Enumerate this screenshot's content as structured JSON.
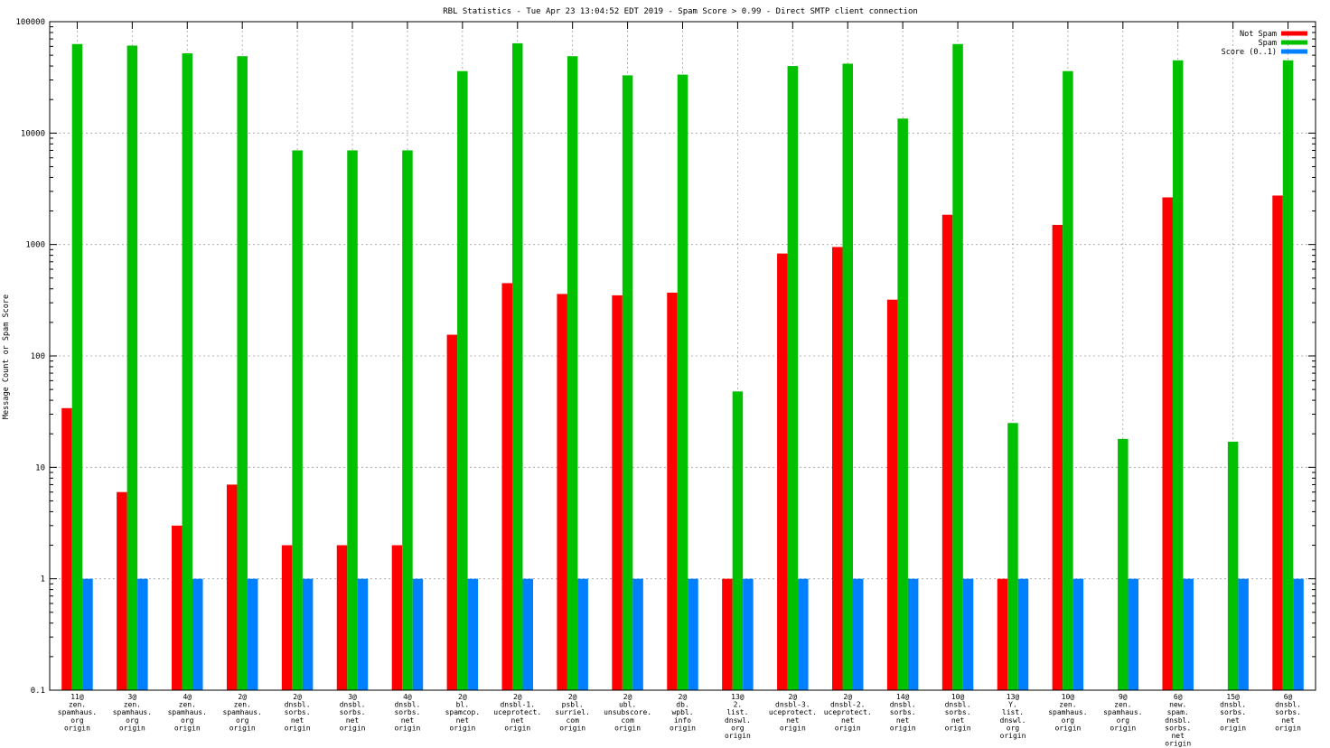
{
  "chart_data": {
    "type": "bar",
    "title": "RBL Statistics - Tue Apr 23 13:04:52 EDT 2019 - Spam Score > 0.99 - Direct SMTP client connection",
    "xlabel": "",
    "ylabel": "Message Count or Spam Score",
    "y_scale": "log",
    "ylim": [
      0.1,
      100000
    ],
    "y_ticks": [
      "0.1",
      "1",
      "10",
      "100",
      "1000",
      "10000",
      "100000"
    ],
    "grid": true,
    "legend_position": "top-right",
    "categories": [
      [
        "11@",
        "zen.",
        "spamhaus.",
        "org",
        "origin"
      ],
      [
        "3@",
        "zen.",
        "spamhaus.",
        "org",
        "origin"
      ],
      [
        "4@",
        "zen.",
        "spamhaus.",
        "org",
        "origin"
      ],
      [
        "2@",
        "zen.",
        "spamhaus.",
        "org",
        "origin"
      ],
      [
        "2@",
        "dnsbl.",
        "sorbs.",
        "net",
        "origin"
      ],
      [
        "3@",
        "dnsbl.",
        "sorbs.",
        "net",
        "origin"
      ],
      [
        "4@",
        "dnsbl.",
        "sorbs.",
        "net",
        "origin"
      ],
      [
        "2@",
        "bl.",
        "spamcop.",
        "net",
        "origin"
      ],
      [
        "2@",
        "dnsbl-1.",
        "uceprotect.",
        "net",
        "origin"
      ],
      [
        "2@",
        "psbl.",
        "surriel.",
        "com",
        "origin"
      ],
      [
        "2@",
        "ubl.",
        "unsubscore.",
        "com",
        "origin"
      ],
      [
        "2@",
        "db.",
        "wpbl.",
        "info",
        "origin"
      ],
      [
        "13@",
        "2.",
        "list.",
        "dnswl.",
        "org",
        "origin"
      ],
      [
        "2@",
        "dnsbl-3.",
        "uceprotect.",
        "net",
        "origin"
      ],
      [
        "2@",
        "dnsbl-2.",
        "uceprotect.",
        "net",
        "origin"
      ],
      [
        "14@",
        "dnsbl.",
        "sorbs.",
        "net",
        "origin"
      ],
      [
        "10@",
        "dnsbl.",
        "sorbs.",
        "net",
        "origin"
      ],
      [
        "13@",
        "Y.",
        "list.",
        "dnswl.",
        "org",
        "origin"
      ],
      [
        "10@",
        "zen.",
        "spamhaus.",
        "org",
        "origin"
      ],
      [
        "9@",
        "zen.",
        "spamhaus.",
        "org",
        "origin"
      ],
      [
        "6@",
        "new.",
        "spam.",
        "dnsbl.",
        "sorbs.",
        "net",
        "origin"
      ],
      [
        "15@",
        "dnsbl.",
        "sorbs.",
        "net",
        "origin"
      ],
      [
        "6@",
        "dnsbl.",
        "sorbs.",
        "net",
        "origin"
      ]
    ],
    "series": [
      {
        "name": "Not Spam",
        "color": "#ff0000",
        "values": [
          34,
          6,
          3,
          7,
          2,
          2,
          2,
          155,
          450,
          360,
          350,
          370,
          1,
          830,
          950,
          320,
          1850,
          1,
          1500,
          0,
          2650,
          0,
          2750
        ]
      },
      {
        "name": "Spam",
        "color": "#00c000",
        "values": [
          63000,
          61000,
          52000,
          49000,
          7000,
          7000,
          7000,
          36000,
          64000,
          49000,
          33000,
          33500,
          48,
          40000,
          42000,
          13500,
          63000,
          25,
          36000,
          18,
          45000,
          17,
          45000
        ]
      },
      {
        "name": "Score (0..1)",
        "color": "#0080ff",
        "values": [
          1,
          1,
          1,
          1,
          1,
          1,
          1,
          1,
          1,
          1,
          1,
          1,
          1,
          1,
          1,
          1,
          1,
          1,
          1,
          1,
          1,
          1,
          1
        ]
      }
    ]
  }
}
